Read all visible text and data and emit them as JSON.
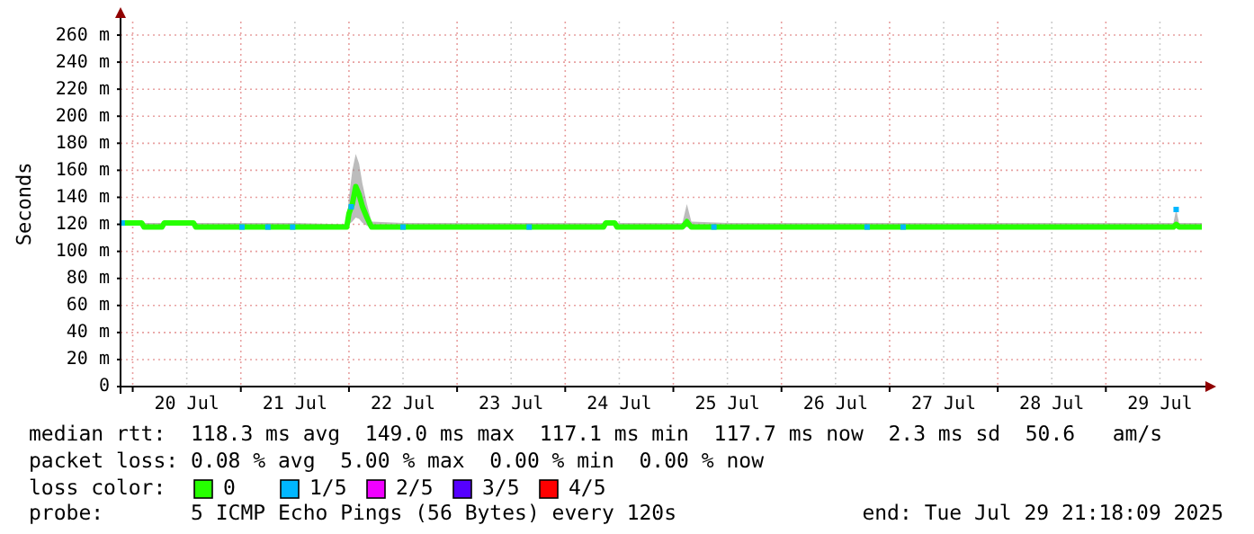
{
  "chart_data": {
    "type": "line",
    "ylabel": "Seconds",
    "xlim": [
      "2025-07-19T21:18",
      "2025-07-29T21:18"
    ],
    "xticks": [
      {
        "value": "2025-07-20T00:00",
        "label": null
      },
      {
        "value": "2025-07-20T12:00",
        "label": "20 Jul"
      },
      {
        "value": "2025-07-21T00:00",
        "label": null
      },
      {
        "value": "2025-07-21T12:00",
        "label": "21 Jul"
      },
      {
        "value": "2025-07-22T00:00",
        "label": null
      },
      {
        "value": "2025-07-22T12:00",
        "label": "22 Jul"
      },
      {
        "value": "2025-07-23T00:00",
        "label": null
      },
      {
        "value": "2025-07-23T12:00",
        "label": "23 Jul"
      },
      {
        "value": "2025-07-24T00:00",
        "label": null
      },
      {
        "value": "2025-07-24T12:00",
        "label": "24 Jul"
      },
      {
        "value": "2025-07-25T00:00",
        "label": null
      },
      {
        "value": "2025-07-25T12:00",
        "label": "25 Jul"
      },
      {
        "value": "2025-07-26T00:00",
        "label": null
      },
      {
        "value": "2025-07-26T12:00",
        "label": "26 Jul"
      },
      {
        "value": "2025-07-27T00:00",
        "label": null
      },
      {
        "value": "2025-07-27T12:00",
        "label": "27 Jul"
      },
      {
        "value": "2025-07-28T00:00",
        "label": null
      },
      {
        "value": "2025-07-28T12:00",
        "label": "28 Jul"
      },
      {
        "value": "2025-07-29T00:00",
        "label": null
      },
      {
        "value": "2025-07-29T12:00",
        "label": "29 Jul"
      }
    ],
    "ylim": [
      0,
      270
    ],
    "yticks": [
      0,
      {
        "value": 20,
        "label": "20 m"
      },
      {
        "value": 40,
        "label": "40 m"
      },
      {
        "value": 60,
        "label": "60 m"
      },
      {
        "value": 80,
        "label": "80 m"
      },
      {
        "value": 100,
        "label": "100 m"
      },
      {
        "value": 120,
        "label": "120 m"
      },
      {
        "value": 140,
        "label": "140 m"
      },
      {
        "value": 160,
        "label": "160 m"
      },
      {
        "value": 180,
        "label": "180 m"
      },
      {
        "value": 200,
        "label": "200 m"
      },
      {
        "value": 220,
        "label": "220 m"
      },
      {
        "value": 240,
        "label": "240 m"
      },
      {
        "value": 260,
        "label": "260 m"
      }
    ],
    "grid": true,
    "legend": "bottom",
    "legend_title": "loss color:",
    "series": [
      {
        "name": "0",
        "color": "#26ff00",
        "x": [
          "2025-07-19T21:18",
          "2025-07-20T02:00",
          "2025-07-20T02:30",
          "2025-07-20T06:30",
          "2025-07-20T07:00",
          "2025-07-20T13:30",
          "2025-07-20T14:00",
          "2025-07-21T00:00",
          "2025-07-21T12:00",
          "2025-07-21T23:30",
          "2025-07-22T00:00",
          "2025-07-22T00:45",
          "2025-07-22T01:30",
          "2025-07-22T02:15",
          "2025-07-22T03:00",
          "2025-07-22T04:00",
          "2025-07-22T05:00",
          "2025-07-22T12:00",
          "2025-07-23T00:00",
          "2025-07-23T12:00",
          "2025-07-24T00:00",
          "2025-07-24T08:30",
          "2025-07-24T09:00",
          "2025-07-24T11:00",
          "2025-07-24T11:30",
          "2025-07-25T02:00",
          "2025-07-25T03:00",
          "2025-07-25T04:00",
          "2025-07-25T12:00",
          "2025-07-26T00:00",
          "2025-07-26T12:00",
          "2025-07-27T00:00",
          "2025-07-27T12:00",
          "2025-07-28T00:00",
          "2025-07-28T12:00",
          "2025-07-29T00:00",
          "2025-07-29T15:00",
          "2025-07-29T15:36",
          "2025-07-29T16:15",
          "2025-07-29T21:18"
        ],
        "values": [
          121,
          121,
          118,
          118,
          121,
          121,
          118,
          118,
          118,
          118,
          128,
          135,
          148,
          142,
          133,
          125,
          118,
          118,
          118,
          118,
          118,
          118,
          121,
          121,
          118,
          118,
          122,
          118,
          118,
          118,
          118,
          118,
          118,
          118,
          118,
          118,
          118,
          120,
          118,
          118
        ],
        "lower": [
          119,
          119,
          117,
          117,
          119,
          119,
          117,
          117,
          117,
          117,
          120,
          122,
          125,
          124,
          121,
          119,
          117,
          117,
          117,
          117,
          117,
          117,
          119,
          119,
          117,
          117,
          118,
          117,
          117,
          117,
          117,
          117,
          117,
          117,
          117,
          117,
          117,
          117,
          117,
          117
        ],
        "upper": [
          123,
          123,
          121,
          121,
          123,
          122,
          121,
          121,
          121,
          120,
          140,
          160,
          172,
          165,
          150,
          135,
          122,
          121,
          121,
          121,
          121,
          121,
          122,
          122,
          121,
          121,
          135,
          122,
          121,
          121,
          121,
          121,
          121,
          121,
          121,
          121,
          121,
          131,
          121,
          121
        ]
      },
      {
        "name": "1/5",
        "type": "scatter",
        "marker": "square",
        "color": "#00b7ff",
        "x": [
          "2025-07-19T21:40",
          "2025-07-21T00:15",
          "2025-07-21T06:00",
          "2025-07-21T11:30",
          "2025-07-22T00:30",
          "2025-07-22T12:00",
          "2025-07-23T16:00",
          "2025-07-25T09:00",
          "2025-07-26T19:00",
          "2025-07-27T03:00",
          "2025-07-29T15:36"
        ],
        "values": [
          121,
          118,
          118,
          118,
          133,
          118,
          118,
          118,
          118,
          118,
          131
        ]
      },
      {
        "name": "2/5",
        "type": "scatter",
        "marker": "square",
        "color": "#f000ff"
      },
      {
        "name": "3/5",
        "type": "scatter",
        "marker": "square",
        "color": "#5500ff"
      },
      {
        "name": "4/5",
        "type": "scatter",
        "marker": "square",
        "color": "#ff0000"
      }
    ],
    "annotations": [
      "median rtt:  118.3 ms avg  149.0 ms max  117.1 ms min  117.7 ms now  2.3 ms sd  50.6   am/s",
      "packet loss: 0.08 % avg  5.00 % max  0.00 % min  0.00 % now",
      "probe:       5 ICMP Echo Pings (56 Bytes) every 120s",
      "end: Tue Jul 29 21:18:09 2025"
    ]
  }
}
